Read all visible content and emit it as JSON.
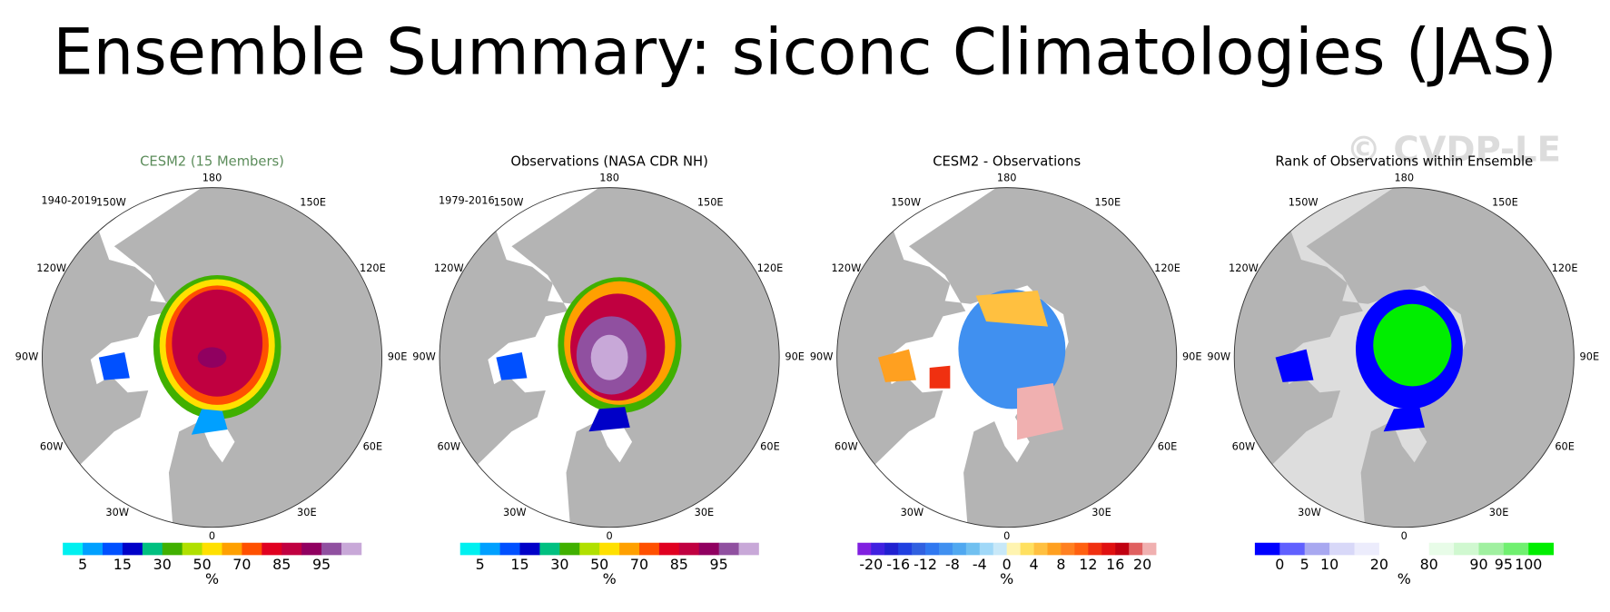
{
  "title": "Ensemble Summary: siconc Climatologies (JAS)",
  "watermark": "© CVDP-LE",
  "longitude_labels": [
    "180",
    "150E",
    "120E",
    "90E",
    "60E",
    "30E",
    "0",
    "30W",
    "60W",
    "90W",
    "120W",
    "150W"
  ],
  "panels": [
    {
      "title": "CESM2 (15 Members)",
      "title_color": "#5b8c5a",
      "period": "1940-2019",
      "ocean_color": "#ffffff",
      "colorbar": {
        "colors": [
          "#00f0f0",
          "#00a0ff",
          "#0050ff",
          "#0000c8",
          "#00c080",
          "#40b000",
          "#b0e000",
          "#ffe000",
          "#ffa000",
          "#ff5000",
          "#e00020",
          "#c00040",
          "#900060",
          "#9050a0",
          "#c8a8d8"
        ],
        "labels": [
          5,
          15,
          30,
          50,
          70,
          85,
          95
        ],
        "units": "%"
      }
    },
    {
      "title": "Observations (NASA CDR NH)",
      "title_color": "#000000",
      "period": "1979-2016",
      "ocean_color": "#ffffff",
      "colorbar": {
        "colors": [
          "#00f0f0",
          "#00a0ff",
          "#0050ff",
          "#0000c8",
          "#00c080",
          "#40b000",
          "#b0e000",
          "#ffe000",
          "#ffa000",
          "#ff5000",
          "#e00020",
          "#c00040",
          "#900060",
          "#9050a0",
          "#c8a8d8"
        ],
        "labels": [
          5,
          15,
          30,
          50,
          70,
          85,
          95
        ],
        "units": "%"
      }
    },
    {
      "title": "CESM2 - Observations",
      "title_color": "#000000",
      "ocean_color": "#ffffff",
      "colorbar": {
        "colors": [
          "#8020e0",
          "#4020e0",
          "#2020d0",
          "#2040e0",
          "#3060e0",
          "#3078f0",
          "#4090f0",
          "#50a8f0",
          "#70c0f0",
          "#a0d8f8",
          "#c8e8f8",
          "#fff4b0",
          "#ffe060",
          "#ffc040",
          "#ffa020",
          "#ff8020",
          "#ff6010",
          "#f03010",
          "#e01010",
          "#c00010",
          "#e06060",
          "#f0b0b0"
        ],
        "labels": [
          -20,
          -16,
          -12,
          -8,
          -4,
          0,
          4,
          8,
          12,
          16,
          20
        ],
        "units": "%"
      }
    },
    {
      "title": "Rank of Observations within Ensemble",
      "title_color": "#000000",
      "ocean_color": "#dddddd",
      "colorbar": {
        "colors": [
          "#0000ff",
          "#6060ff",
          "#a8a8f0",
          "#d8d8f8",
          "#ececfc",
          "#ffffff",
          "#ffffff",
          "#e8fce8",
          "#d0f8d0",
          "#a0f0a0",
          "#70f070",
          "#00ee00"
        ],
        "labels": [
          0,
          5,
          10,
          20,
          80,
          90,
          95,
          100
        ],
        "units": "%"
      }
    }
  ]
}
